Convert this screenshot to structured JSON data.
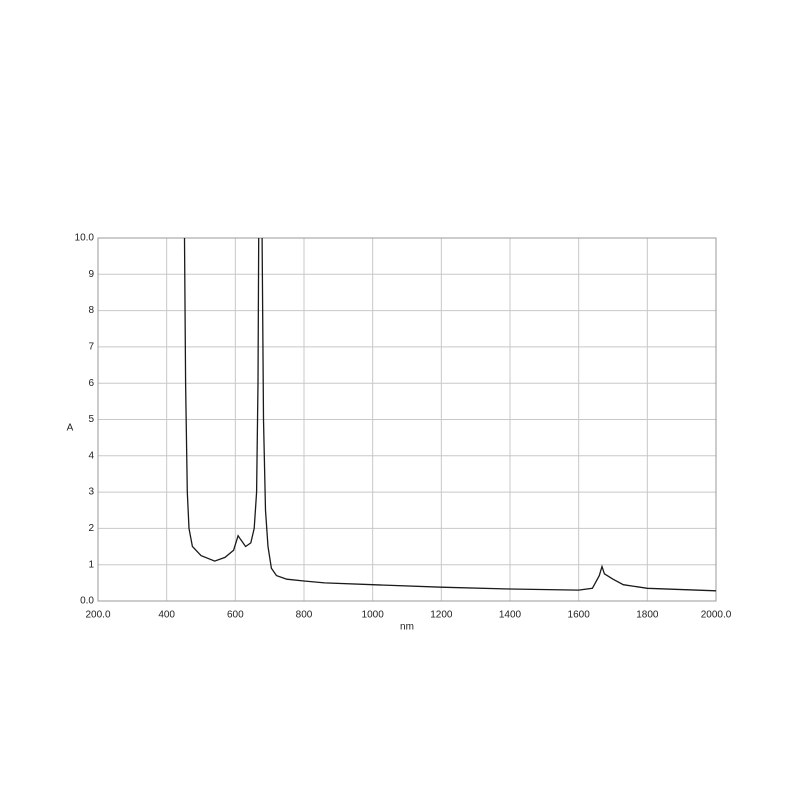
{
  "chart_data": {
    "type": "line",
    "x_label": "nm",
    "y_label": "A",
    "x": [
      452,
      455,
      460,
      465,
      475,
      500,
      540,
      570,
      595,
      608,
      615,
      630,
      645,
      655,
      662,
      666,
      668,
      673,
      678,
      682,
      688,
      695,
      705,
      720,
      750,
      800,
      860,
      1000,
      1200,
      1400,
      1600,
      1640,
      1660,
      1668,
      1675,
      1700,
      1730,
      1800,
      2000
    ],
    "series": [
      {
        "color": "#1a1a1a",
        "values": [
          10,
          6,
          3,
          2,
          1.5,
          1.25,
          1.1,
          1.2,
          1.4,
          1.8,
          1.7,
          1.5,
          1.6,
          2,
          3,
          6,
          10,
          null,
          10,
          5,
          2.5,
          1.5,
          0.9,
          0.7,
          0.6,
          0.55,
          0.5,
          0.45,
          0.38,
          0.33,
          0.3,
          0.35,
          0.7,
          0.95,
          0.75,
          0.6,
          0.45,
          0.35,
          0.28
        ]
      }
    ],
    "xlim": [
      200,
      2000
    ],
    "ylim": [
      0,
      10
    ],
    "xticks": [
      {
        "value": 200,
        "label": "200.0"
      },
      400,
      600,
      800,
      1000,
      1200,
      1400,
      1600,
      1800,
      {
        "value": 2000,
        "label": "2000.0"
      }
    ],
    "yticks": [
      {
        "value": 0,
        "label": "0.0"
      },
      1,
      2,
      3,
      4,
      5,
      6,
      7,
      8,
      9,
      {
        "value": 10,
        "label": "10.0"
      }
    ],
    "grid": true
  }
}
